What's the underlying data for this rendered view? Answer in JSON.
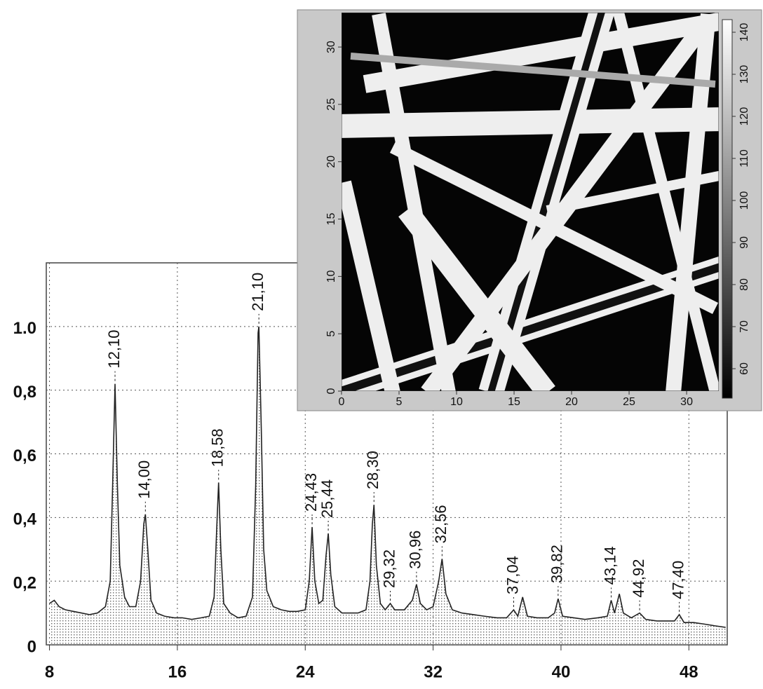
{
  "chart_data": [
    {
      "type": "line",
      "color": "#222222",
      "grid": true,
      "xlim": [
        7.8,
        50.4
      ],
      "xticks": [
        8,
        16,
        24,
        32,
        40,
        48
      ],
      "ylim": [
        0,
        1.2
      ],
      "yticks": [
        0,
        {
          "value": 0.2,
          "label": "0,2"
        },
        {
          "value": 0.4,
          "label": "0,4"
        },
        {
          "value": 0.6,
          "label": "0,6"
        },
        {
          "value": 0.8,
          "label": "0,8"
        },
        {
          "value": 1.0,
          "label": "1.0"
        }
      ],
      "x": [
        8.0,
        8.3,
        8.6,
        9.0,
        9.5,
        10.0,
        10.5,
        11.0,
        11.5,
        11.8,
        11.95,
        12.1,
        12.25,
        12.4,
        12.7,
        13.0,
        13.4,
        13.7,
        13.9,
        14.0,
        14.15,
        14.35,
        14.7,
        15.2,
        15.8,
        16.3,
        16.9,
        17.5,
        18.0,
        18.3,
        18.45,
        18.58,
        18.72,
        18.9,
        19.3,
        19.8,
        20.3,
        20.7,
        20.9,
        21.05,
        21.1,
        21.25,
        21.4,
        21.6,
        22.0,
        22.5,
        23.0,
        23.5,
        24.0,
        24.25,
        24.43,
        24.6,
        24.85,
        25.1,
        25.3,
        25.44,
        25.6,
        25.85,
        26.3,
        26.8,
        27.3,
        27.8,
        28.05,
        28.2,
        28.3,
        28.45,
        28.7,
        29.0,
        29.32,
        29.6,
        30.2,
        30.7,
        30.96,
        31.2,
        31.6,
        32.0,
        32.35,
        32.56,
        32.8,
        33.2,
        33.8,
        34.5,
        35.2,
        36.0,
        36.6,
        37.04,
        37.3,
        37.6,
        37.9,
        38.5,
        39.2,
        39.6,
        39.82,
        40.1,
        40.8,
        41.5,
        42.3,
        42.9,
        43.14,
        43.35,
        43.65,
        43.9,
        44.4,
        44.92,
        45.3,
        46.0,
        46.7,
        47.1,
        47.4,
        47.7,
        48.3,
        49.0,
        49.6,
        50.3
      ],
      "values": [
        0.13,
        0.14,
        0.12,
        0.11,
        0.105,
        0.1,
        0.095,
        0.1,
        0.12,
        0.2,
        0.5,
        0.82,
        0.5,
        0.25,
        0.15,
        0.12,
        0.12,
        0.2,
        0.38,
        0.41,
        0.3,
        0.14,
        0.1,
        0.09,
        0.085,
        0.085,
        0.08,
        0.085,
        0.09,
        0.15,
        0.35,
        0.51,
        0.3,
        0.13,
        0.1,
        0.085,
        0.09,
        0.15,
        0.5,
        0.98,
        1.0,
        0.68,
        0.3,
        0.17,
        0.12,
        0.11,
        0.105,
        0.105,
        0.11,
        0.2,
        0.37,
        0.2,
        0.13,
        0.14,
        0.28,
        0.35,
        0.22,
        0.12,
        0.1,
        0.1,
        0.1,
        0.11,
        0.2,
        0.38,
        0.44,
        0.25,
        0.13,
        0.11,
        0.13,
        0.11,
        0.11,
        0.14,
        0.19,
        0.13,
        0.11,
        0.12,
        0.2,
        0.27,
        0.16,
        0.11,
        0.1,
        0.095,
        0.09,
        0.085,
        0.085,
        0.11,
        0.09,
        0.15,
        0.09,
        0.085,
        0.085,
        0.1,
        0.145,
        0.09,
        0.085,
        0.08,
        0.085,
        0.09,
        0.14,
        0.1,
        0.16,
        0.1,
        0.085,
        0.1,
        0.08,
        0.075,
        0.075,
        0.075,
        0.095,
        0.07,
        0.07,
        0.065,
        0.06,
        0.055
      ],
      "annotations": [
        {
          "x": 12.1,
          "label": "12,10"
        },
        {
          "x": 14.0,
          "label": "14,00"
        },
        {
          "x": 18.58,
          "label": "18,58"
        },
        {
          "x": 21.1,
          "label": "21,10"
        },
        {
          "x": 24.43,
          "label": "24,43"
        },
        {
          "x": 25.44,
          "label": "25,44"
        },
        {
          "x": 28.3,
          "label": "28,30"
        },
        {
          "x": 29.32,
          "label": "29,32"
        },
        {
          "x": 30.96,
          "label": "30,96"
        },
        {
          "x": 32.56,
          "label": "32,56"
        },
        {
          "x": 37.04,
          "label": "37,04"
        },
        {
          "x": 39.82,
          "label": "39,82"
        },
        {
          "x": 43.14,
          "label": "43,14"
        },
        {
          "x": 44.92,
          "label": "44,92"
        },
        {
          "x": 47.4,
          "label": "47,40"
        }
      ]
    },
    {
      "type": "heatmap",
      "xlim": [
        0,
        32.8
      ],
      "xticks": [
        0,
        5,
        10,
        15,
        20,
        25,
        30
      ],
      "ylim": [
        0,
        33
      ],
      "yticks": [
        0,
        5,
        10,
        15,
        20,
        25,
        30
      ],
      "colorbar_lim": [
        53,
        143
      ],
      "colorbar_ticks": [
        60,
        70,
        80,
        90,
        100,
        110,
        120,
        130,
        140
      ]
    }
  ]
}
